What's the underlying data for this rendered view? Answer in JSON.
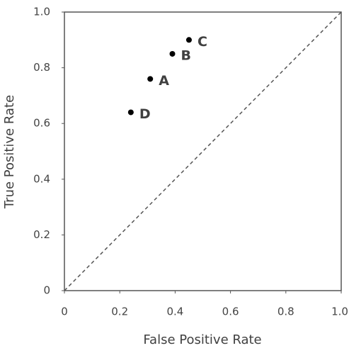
{
  "chart_data": {
    "type": "scatter",
    "x_label": "False Positive Rate",
    "y_label": "True Positive Rate",
    "x": [
      0.31,
      0.39,
      0.45,
      0.24
    ],
    "values": [
      0.76,
      0.85,
      0.9,
      0.64
    ],
    "labels": [
      "A",
      "B",
      "C",
      "D"
    ],
    "color": "#000000",
    "xlim": [
      0,
      1
    ],
    "ylim": [
      0,
      1
    ],
    "xticks": [
      0,
      0.2,
      0.4,
      0.6,
      0.8,
      {
        "value": 1,
        "label": "1.0"
      }
    ],
    "yticks": [
      0,
      0.2,
      0.4,
      0.6,
      0.8,
      {
        "value": 1,
        "label": "1.0"
      }
    ]
  }
}
